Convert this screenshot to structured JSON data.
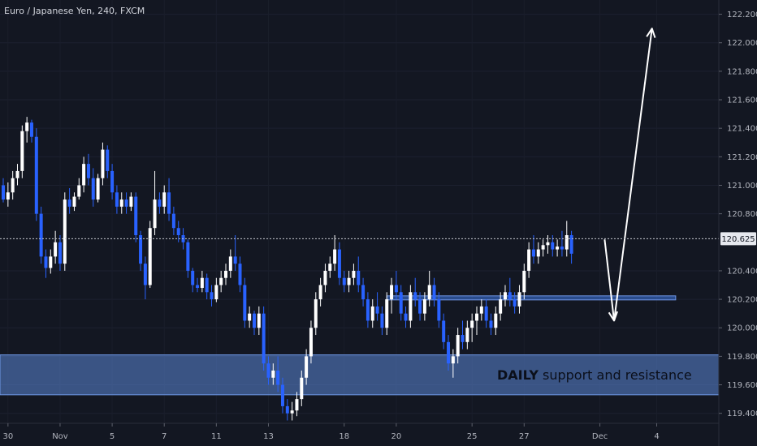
{
  "chart_data": {
    "type": "candlestick",
    "title": "Euro / Japanese Yen, 240, FXCM",
    "ylim": [
      119.33,
      122.3
    ],
    "y_ticks": [
      "122.200",
      "122.000",
      "121.800",
      "121.600",
      "121.400",
      "121.200",
      "121.000",
      "120.800",
      "120.400",
      "120.200",
      "120.000",
      "119.800",
      "119.600",
      "119.400"
    ],
    "y_tick_values": [
      122.2,
      122.0,
      121.8,
      121.6,
      121.4,
      121.2,
      121.0,
      120.8,
      120.4,
      120.2,
      120.0,
      119.8,
      119.6,
      119.4
    ],
    "x_ticks": [
      {
        "label": "30",
        "index": 1
      },
      {
        "label": "Nov",
        "index": 12
      },
      {
        "label": "5",
        "index": 23
      },
      {
        "label": "7",
        "index": 34
      },
      {
        "label": "11",
        "index": 45
      },
      {
        "label": "13",
        "index": 56
      },
      {
        "label": "18",
        "index": 72
      },
      {
        "label": "20",
        "index": 83
      },
      {
        "label": "25",
        "index": 99
      },
      {
        "label": "27",
        "index": 110
      },
      {
        "label": "Dec",
        "index": 126
      },
      {
        "label": "4",
        "index": 138
      }
    ],
    "current_price": {
      "label": "120.625",
      "value": 120.625
    },
    "colors": {
      "up": "#ffffff",
      "down": "#2962ff",
      "background": "#131722",
      "zone": "#5b86d6"
    },
    "candles": [
      [
        121.0,
        121.05,
        120.88,
        120.9
      ],
      [
        120.9,
        121.02,
        120.85,
        120.95
      ],
      [
        120.95,
        121.1,
        120.9,
        121.05
      ],
      [
        121.05,
        121.15,
        121.0,
        121.1
      ],
      [
        121.1,
        121.42,
        121.05,
        121.38
      ],
      [
        121.38,
        121.48,
        121.3,
        121.44
      ],
      [
        121.44,
        121.46,
        121.3,
        121.34
      ],
      [
        121.34,
        121.4,
        120.75,
        120.8
      ],
      [
        120.8,
        120.85,
        120.45,
        120.5
      ],
      [
        120.5,
        120.55,
        120.35,
        120.42
      ],
      [
        120.42,
        120.55,
        120.38,
        120.5
      ],
      [
        120.5,
        120.68,
        120.45,
        120.6
      ],
      [
        120.6,
        120.65,
        120.4,
        120.45
      ],
      [
        120.45,
        120.95,
        120.4,
        120.9
      ],
      [
        120.9,
        120.98,
        120.8,
        120.85
      ],
      [
        120.85,
        120.95,
        120.82,
        120.92
      ],
      [
        120.92,
        121.05,
        120.9,
        121.0
      ],
      [
        121.0,
        121.2,
        120.95,
        121.15
      ],
      [
        121.15,
        121.22,
        121.0,
        121.05
      ],
      [
        121.05,
        121.12,
        120.85,
        120.9
      ],
      [
        120.9,
        121.08,
        120.88,
        121.05
      ],
      [
        121.05,
        121.3,
        121.0,
        121.25
      ],
      [
        121.25,
        121.28,
        121.05,
        121.1
      ],
      [
        121.1,
        121.15,
        120.9,
        120.95
      ],
      [
        120.95,
        121.0,
        120.8,
        120.85
      ],
      [
        120.85,
        120.95,
        120.8,
        120.9
      ],
      [
        120.9,
        120.95,
        120.8,
        120.85
      ],
      [
        120.85,
        120.95,
        120.82,
        120.92
      ],
      [
        120.92,
        120.95,
        120.6,
        120.65
      ],
      [
        120.65,
        120.68,
        120.4,
        120.45
      ],
      [
        120.45,
        120.5,
        120.2,
        120.3
      ],
      [
        120.3,
        120.75,
        120.28,
        120.7
      ],
      [
        120.7,
        121.1,
        120.65,
        120.9
      ],
      [
        120.9,
        120.95,
        120.8,
        120.85
      ],
      [
        120.85,
        121.0,
        120.8,
        120.95
      ],
      [
        120.95,
        121.05,
        120.75,
        120.8
      ],
      [
        120.8,
        120.85,
        120.65,
        120.7
      ],
      [
        120.7,
        120.75,
        120.6,
        120.65
      ],
      [
        120.65,
        120.7,
        120.55,
        120.6
      ],
      [
        120.6,
        120.62,
        120.35,
        120.4
      ],
      [
        120.4,
        120.42,
        120.25,
        120.3
      ],
      [
        120.3,
        120.35,
        120.25,
        120.28
      ],
      [
        120.28,
        120.4,
        120.25,
        120.35
      ],
      [
        120.35,
        120.38,
        120.2,
        120.25
      ],
      [
        120.25,
        120.3,
        120.15,
        120.2
      ],
      [
        120.2,
        120.35,
        120.18,
        120.3
      ],
      [
        120.3,
        120.4,
        120.25,
        120.35
      ],
      [
        120.35,
        120.45,
        120.3,
        120.4
      ],
      [
        120.4,
        120.55,
        120.35,
        120.5
      ],
      [
        120.5,
        120.65,
        120.4,
        120.45
      ],
      [
        120.45,
        120.5,
        120.25,
        120.3
      ],
      [
        120.3,
        120.35,
        120.0,
        120.05
      ],
      [
        120.05,
        120.15,
        120.0,
        120.1
      ],
      [
        120.1,
        120.12,
        119.95,
        120.0
      ],
      [
        120.0,
        120.15,
        119.95,
        120.1
      ],
      [
        120.1,
        120.15,
        119.7,
        119.75
      ],
      [
        119.75,
        119.8,
        119.6,
        119.65
      ],
      [
        119.65,
        119.75,
        119.6,
        119.7
      ],
      [
        119.7,
        119.8,
        119.55,
        119.6
      ],
      [
        119.6,
        119.65,
        119.4,
        119.45
      ],
      [
        119.45,
        119.5,
        119.35,
        119.4
      ],
      [
        119.4,
        119.48,
        119.35,
        119.42
      ],
      [
        119.42,
        119.55,
        119.38,
        119.5
      ],
      [
        119.5,
        119.7,
        119.45,
        119.65
      ],
      [
        119.65,
        119.85,
        119.6,
        119.8
      ],
      [
        119.8,
        120.05,
        119.75,
        120.0
      ],
      [
        120.0,
        120.25,
        119.95,
        120.2
      ],
      [
        120.2,
        120.35,
        120.15,
        120.3
      ],
      [
        120.3,
        120.45,
        120.25,
        120.4
      ],
      [
        120.4,
        120.5,
        120.35,
        120.45
      ],
      [
        120.45,
        120.65,
        120.4,
        120.55
      ],
      [
        120.55,
        120.6,
        120.3,
        120.35
      ],
      [
        120.35,
        120.4,
        120.25,
        120.3
      ],
      [
        120.3,
        120.4,
        120.25,
        120.35
      ],
      [
        120.35,
        120.45,
        120.3,
        120.4
      ],
      [
        120.4,
        120.5,
        120.25,
        120.3
      ],
      [
        120.3,
        120.35,
        120.15,
        120.2
      ],
      [
        120.2,
        120.25,
        120.0,
        120.05
      ],
      [
        120.05,
        120.2,
        120.0,
        120.15
      ],
      [
        120.15,
        120.25,
        120.05,
        120.1
      ],
      [
        120.1,
        120.15,
        119.95,
        120.0
      ],
      [
        120.0,
        120.25,
        119.95,
        120.2
      ],
      [
        120.2,
        120.35,
        120.1,
        120.3
      ],
      [
        120.3,
        120.4,
        120.2,
        120.25
      ],
      [
        120.25,
        120.3,
        120.05,
        120.1
      ],
      [
        120.1,
        120.15,
        120.0,
        120.05
      ],
      [
        120.05,
        120.3,
        120.0,
        120.25
      ],
      [
        120.25,
        120.35,
        120.15,
        120.2
      ],
      [
        120.2,
        120.25,
        120.05,
        120.1
      ],
      [
        120.1,
        120.25,
        120.05,
        120.2
      ],
      [
        120.2,
        120.4,
        120.15,
        120.3
      ],
      [
        120.3,
        120.35,
        120.15,
        120.2
      ],
      [
        120.2,
        120.25,
        120.0,
        120.05
      ],
      [
        120.05,
        120.1,
        119.85,
        119.9
      ],
      [
        119.9,
        119.95,
        119.7,
        119.75
      ],
      [
        119.75,
        119.85,
        119.65,
        119.8
      ],
      [
        119.8,
        120.0,
        119.75,
        119.95
      ],
      [
        119.95,
        120.05,
        119.85,
        119.9
      ],
      [
        119.9,
        120.05,
        119.85,
        120.0
      ],
      [
        120.0,
        120.1,
        119.9,
        120.05
      ],
      [
        120.05,
        120.15,
        119.95,
        120.1
      ],
      [
        120.1,
        120.2,
        120.05,
        120.15
      ],
      [
        120.15,
        120.2,
        120.0,
        120.05
      ],
      [
        120.05,
        120.1,
        119.95,
        120.0
      ],
      [
        120.0,
        120.15,
        119.95,
        120.1
      ],
      [
        120.1,
        120.25,
        120.05,
        120.2
      ],
      [
        120.2,
        120.3,
        120.15,
        120.25
      ],
      [
        120.25,
        120.35,
        120.15,
        120.2
      ],
      [
        120.2,
        120.25,
        120.1,
        120.15
      ],
      [
        120.15,
        120.3,
        120.1,
        120.25
      ],
      [
        120.25,
        120.45,
        120.2,
        120.4
      ],
      [
        120.4,
        120.6,
        120.35,
        120.55
      ],
      [
        120.55,
        120.65,
        120.45,
        120.5
      ],
      [
        120.5,
        120.6,
        120.45,
        120.55
      ],
      [
        120.55,
        120.62,
        120.5,
        120.58
      ],
      [
        120.58,
        120.65,
        120.52,
        120.6
      ],
      [
        120.6,
        120.65,
        120.5,
        120.55
      ],
      [
        120.55,
        120.62,
        120.5,
        120.57
      ],
      [
        120.57,
        120.68,
        120.5,
        120.55
      ],
      [
        120.55,
        120.75,
        120.5,
        120.65
      ],
      [
        120.65,
        120.68,
        120.45,
        120.52
      ]
    ],
    "annotations": {
      "zone_label": "DAILY support and resistance",
      "zone_label_bold": "DAILY",
      "zone_label_rest": " support and resistance",
      "daily_zone": {
        "top": 119.81,
        "bottom": 119.53
      },
      "resistance_line": {
        "price": 120.21,
        "from_index": 81,
        "to_index": 142
      },
      "arrow_down": {
        "from_index": 127,
        "from_price": 120.62,
        "to_index": 129,
        "to_price": 120.05
      },
      "arrow_up": {
        "from_index": 129,
        "from_price": 120.05,
        "to_index": 137,
        "to_price": 122.1
      }
    }
  }
}
